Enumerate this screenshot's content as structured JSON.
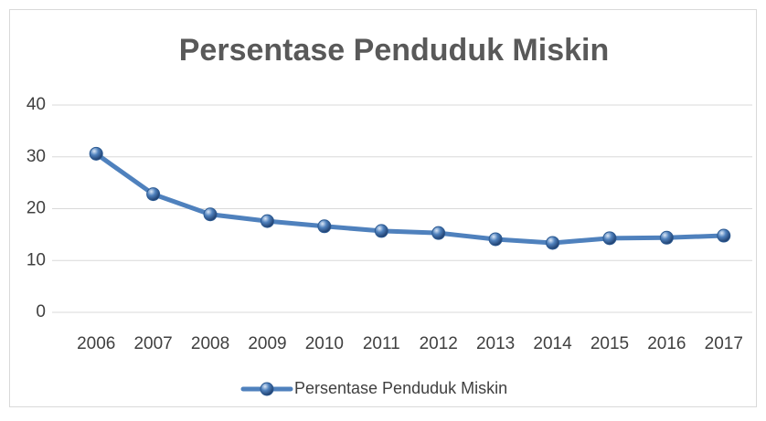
{
  "chart_data": {
    "type": "line",
    "title": "Persentase Penduduk Miskin",
    "categories": [
      "2006",
      "2007",
      "2008",
      "2009",
      "2010",
      "2011",
      "2012",
      "2013",
      "2014",
      "2015",
      "2016",
      "2017"
    ],
    "series": [
      {
        "name": "Persentase Penduduk Miskin",
        "color": "#4f81bd",
        "values": [
          30.6,
          22.8,
          18.9,
          17.6,
          16.6,
          15.7,
          15.3,
          14.1,
          13.4,
          14.3,
          14.4,
          14.8
        ]
      }
    ],
    "ylim": [
      0,
      40
    ],
    "yticks": [
      0,
      10,
      20,
      30,
      40
    ],
    "grid": true,
    "legend": "bottom"
  }
}
